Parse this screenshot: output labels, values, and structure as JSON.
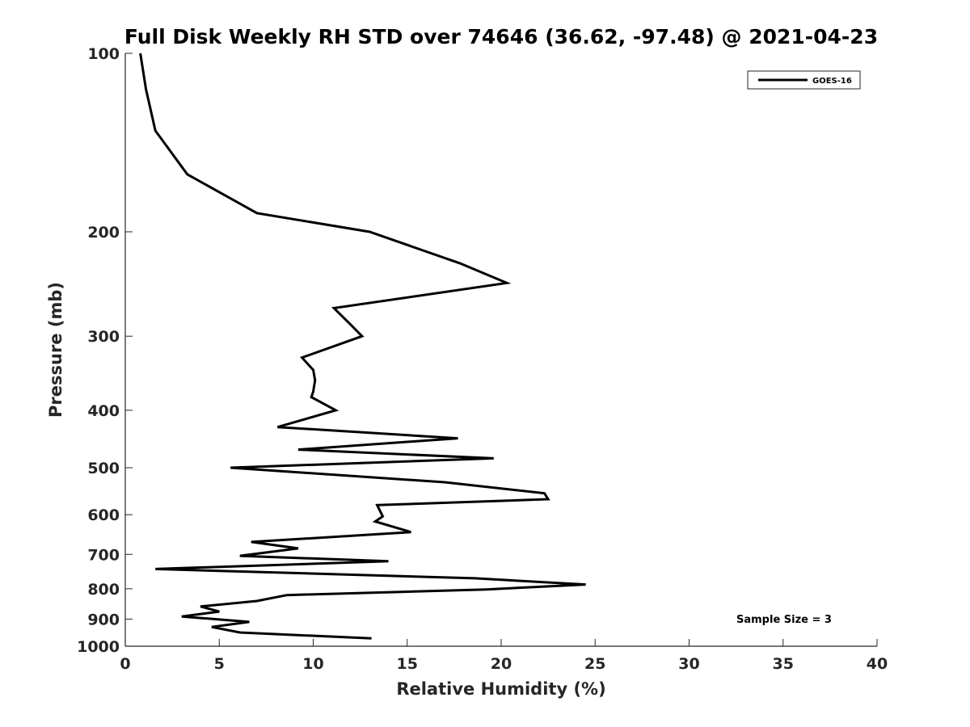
{
  "chart_data": {
    "type": "line",
    "title": "Full Disk Weekly RH STD over 74646 (36.62, -97.48) @ 2021-04-23",
    "xlabel": "Relative Humidity (%)",
    "ylabel": "Pressure (mb)",
    "xlim": [
      0,
      40
    ],
    "ylim": [
      100,
      1000
    ],
    "yscale": "log",
    "y_reversed": true,
    "grid": false,
    "xticks": [
      0,
      5,
      10,
      15,
      20,
      25,
      30,
      35,
      40
    ],
    "yticks": [
      100,
      200,
      300,
      400,
      500,
      600,
      700,
      800,
      900,
      1000
    ],
    "legend": {
      "placement": "top-right",
      "entries": [
        "GOES-16"
      ]
    },
    "annotation": "Sample Size = 3",
    "series": [
      {
        "name": "GOES-16",
        "color": "#000000",
        "points": [
          [
            0.8,
            100
          ],
          [
            1.1,
            115
          ],
          [
            1.6,
            135
          ],
          [
            3.3,
            160
          ],
          [
            7.0,
            186
          ],
          [
            13.0,
            200
          ],
          [
            17.8,
            226
          ],
          [
            20.3,
            244
          ],
          [
            11.1,
            269
          ],
          [
            12.0,
            287
          ],
          [
            12.6,
            300
          ],
          [
            9.4,
            326
          ],
          [
            10.0,
            342
          ],
          [
            10.1,
            356
          ],
          [
            10.0,
            372
          ],
          [
            9.9,
            380
          ],
          [
            11.2,
            400
          ],
          [
            8.1,
            427
          ],
          [
            17.7,
            446
          ],
          [
            9.2,
            466
          ],
          [
            19.6,
            482
          ],
          [
            5.6,
            500
          ],
          [
            17.0,
            529
          ],
          [
            22.3,
            552
          ],
          [
            22.5,
            565
          ],
          [
            13.4,
            578
          ],
          [
            13.7,
            604
          ],
          [
            13.3,
            616
          ],
          [
            15.2,
            642
          ],
          [
            6.7,
            667
          ],
          [
            9.2,
            684
          ],
          [
            6.1,
            704
          ],
          [
            14.0,
            719
          ],
          [
            1.6,
            741
          ],
          [
            18.6,
            768
          ],
          [
            24.5,
            787
          ],
          [
            19.2,
            802
          ],
          [
            8.6,
            820
          ],
          [
            7.0,
            839
          ],
          [
            4.0,
            857
          ],
          [
            5.0,
            874
          ],
          [
            3.0,
            891
          ],
          [
            6.6,
            910
          ],
          [
            4.6,
            928
          ],
          [
            6.1,
            948
          ],
          [
            13.1,
            970
          ]
        ]
      }
    ]
  }
}
